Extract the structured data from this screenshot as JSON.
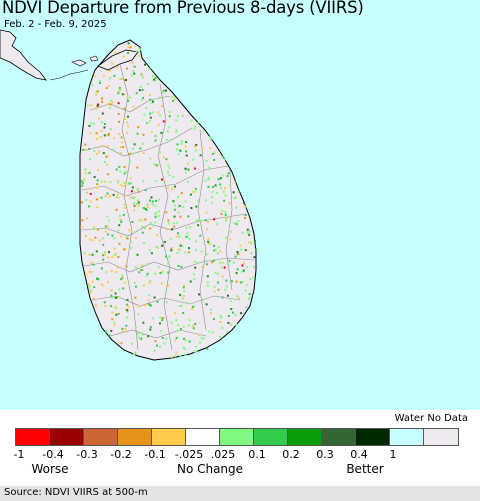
{
  "title": "NDVI Departure from Previous 8-days (VIIRS)",
  "date_range": "Feb. 2 - Feb. 9, 2025",
  "legend": {
    "water_label": "Water No Data",
    "swatch_colors": [
      "#ff0000",
      "#990000",
      "#cc6633",
      "#e69419",
      "#ffc94a",
      "#ffffff",
      "#7ffa7f",
      "#33cc4c",
      "#0a9e0a",
      "#336633",
      "#002900",
      "#c7ffff",
      "#efeaef"
    ],
    "ticks": [
      "-1",
      "-0.4",
      "-0.3",
      "-0.2",
      "-0.1",
      "-.025",
      ".025",
      "0.1",
      "0.2",
      "0.3",
      "0.4",
      "1"
    ],
    "categories": [
      "Worse",
      "No Change",
      "Better"
    ]
  },
  "source": "Source: NDVI VIIRS at 500-m",
  "map": {
    "land_color": "#efeaef",
    "water_color": "#c7ffff",
    "border_color": "#888888",
    "coast_color": "#000000"
  }
}
